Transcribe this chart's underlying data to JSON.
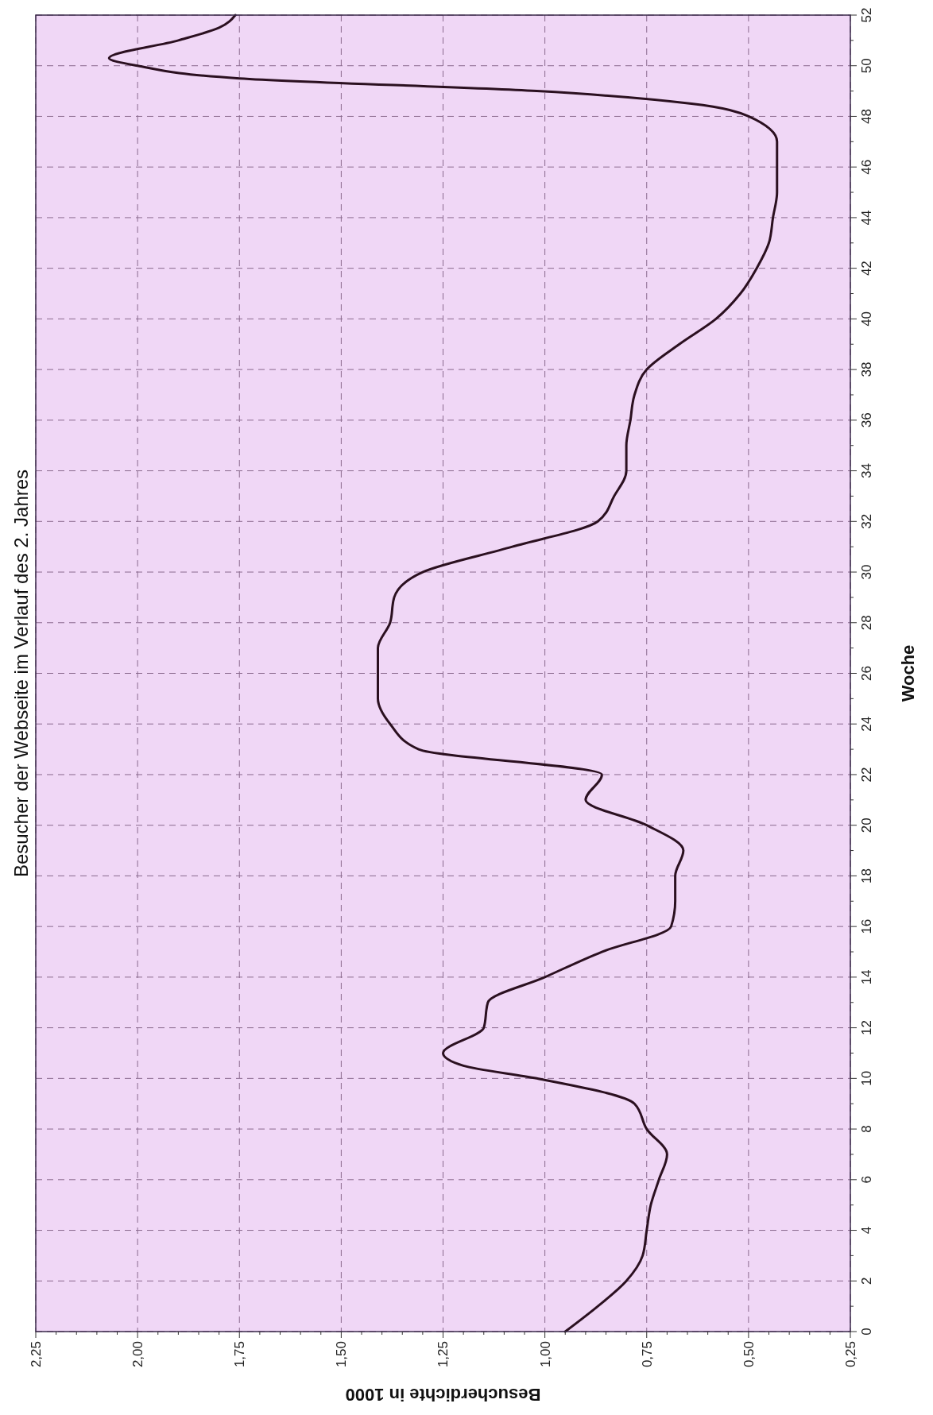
{
  "chart_data": {
    "type": "line",
    "title": "Besucher der Webseite im Verlauf des 2. Jahres",
    "xlabel": "Besucherdichte in 1000",
    "ylabel": "Woche",
    "x": [
      0.95,
      0.87,
      0.8,
      0.76,
      0.75,
      0.74,
      0.72,
      0.7,
      0.75,
      0.78,
      1.02,
      1.2,
      1.25,
      1.15,
      1.14,
      1.0,
      0.86,
      0.69,
      0.68,
      0.68,
      0.66,
      0.75,
      0.9,
      0.86,
      1.31,
      1.38,
      1.41,
      1.41,
      1.41,
      1.38,
      1.37,
      1.3,
      1.08,
      0.87,
      0.83,
      0.8,
      0.8,
      0.79,
      0.78,
      0.75,
      0.67,
      0.58,
      0.52,
      0.48,
      0.45,
      0.44,
      0.43,
      0.43,
      0.43,
      0.5,
      0.64,
      1.02,
      1.75,
      2.0,
      2.07,
      1.9,
      1.8,
      1.76
    ],
    "series": [
      {
        "color": "#2b1020",
        "values": [
          0,
          1,
          2,
          3,
          4,
          5,
          6,
          7,
          8,
          9,
          10,
          10.5,
          11,
          12,
          13,
          14,
          15,
          16,
          17,
          18,
          19,
          20,
          21,
          22,
          23,
          24,
          25,
          26,
          27,
          28,
          29,
          30,
          31,
          32,
          33,
          34,
          35,
          36,
          37,
          38,
          39,
          40,
          41,
          42,
          43,
          44,
          45,
          46,
          47,
          48,
          48.5,
          49,
          49.5,
          50,
          50.3,
          51,
          51.5,
          52
        ]
      }
    ],
    "ylim": [
      0,
      52
    ],
    "yticks": [
      0,
      {
        "value": 1,
        "label": null
      },
      2,
      {
        "value": 3,
        "label": null
      },
      4,
      {
        "value": 5,
        "label": null
      },
      6,
      {
        "value": 7,
        "label": null
      },
      8,
      {
        "value": 9,
        "label": null
      },
      10,
      {
        "value": 11,
        "label": null
      },
      12,
      {
        "value": 13,
        "label": null
      },
      14,
      {
        "value": 15,
        "label": null
      },
      16,
      {
        "value": 17,
        "label": null
      },
      18,
      {
        "value": 19,
        "label": null
      },
      20,
      {
        "value": 21,
        "label": null
      },
      22,
      {
        "value": 23,
        "label": null
      },
      24,
      {
        "value": 25,
        "label": null
      },
      26,
      {
        "value": 27,
        "label": null
      },
      28,
      {
        "value": 29,
        "label": null
      },
      30,
      {
        "value": 31,
        "label": null
      },
      32,
      {
        "value": 33,
        "label": null
      },
      34,
      {
        "value": 35,
        "label": null
      },
      36,
      {
        "value": 37,
        "label": null
      },
      38,
      {
        "value": 39,
        "label": null
      },
      40,
      {
        "value": 41,
        "label": null
      },
      42,
      {
        "value": 43,
        "label": null
      },
      44,
      {
        "value": 45,
        "label": null
      },
      46,
      {
        "value": 47,
        "label": null
      },
      48,
      {
        "value": 49,
        "label": null
      },
      50,
      {
        "value": 51,
        "label": null
      },
      52
    ],
    "xlim": [
      2.25,
      0.25
    ],
    "xticks": [
      {
        "value": 2.25,
        "label": "2,25"
      },
      {
        "value": 2.2,
        "label": null
      },
      {
        "value": 2.15,
        "label": null
      },
      {
        "value": 2.1,
        "label": null
      },
      {
        "value": 2.05,
        "label": null
      },
      {
        "value": 2.0,
        "label": "2,00"
      },
      {
        "value": 1.95,
        "label": null
      },
      {
        "value": 1.9,
        "label": null
      },
      {
        "value": 1.85,
        "label": null
      },
      {
        "value": 1.8,
        "label": null
      },
      {
        "value": 1.75,
        "label": "1,75"
      },
      {
        "value": 1.7,
        "label": null
      },
      {
        "value": 1.65,
        "label": null
      },
      {
        "value": 1.6,
        "label": null
      },
      {
        "value": 1.55,
        "label": null
      },
      {
        "value": 1.5,
        "label": "1,50"
      },
      {
        "value": 1.45,
        "label": null
      },
      {
        "value": 1.4,
        "label": null
      },
      {
        "value": 1.35,
        "label": null
      },
      {
        "value": 1.3,
        "label": null
      },
      {
        "value": 1.25,
        "label": "1,25"
      },
      {
        "value": 1.2,
        "label": null
      },
      {
        "value": 1.15,
        "label": null
      },
      {
        "value": 1.1,
        "label": null
      },
      {
        "value": 1.05,
        "label": null
      },
      {
        "value": 1.0,
        "label": "1,00"
      },
      {
        "value": 0.95,
        "label": null
      },
      {
        "value": 0.9,
        "label": null
      },
      {
        "value": 0.85,
        "label": null
      },
      {
        "value": 0.8,
        "label": null
      },
      {
        "value": 0.75,
        "label": "0,75"
      },
      {
        "value": 0.7,
        "label": null
      },
      {
        "value": 0.65,
        "label": null
      },
      {
        "value": 0.6,
        "label": null
      },
      {
        "value": 0.55,
        "label": null
      },
      {
        "value": 0.5,
        "label": "0,50"
      },
      {
        "value": 0.45,
        "label": null
      },
      {
        "value": 0.4,
        "label": null
      },
      {
        "value": 0.35,
        "label": null
      },
      {
        "value": 0.3,
        "label": null
      },
      {
        "value": 0.25,
        "label": "0,25"
      }
    ],
    "grid": true,
    "marker": "none",
    "line_style": "solid"
  }
}
